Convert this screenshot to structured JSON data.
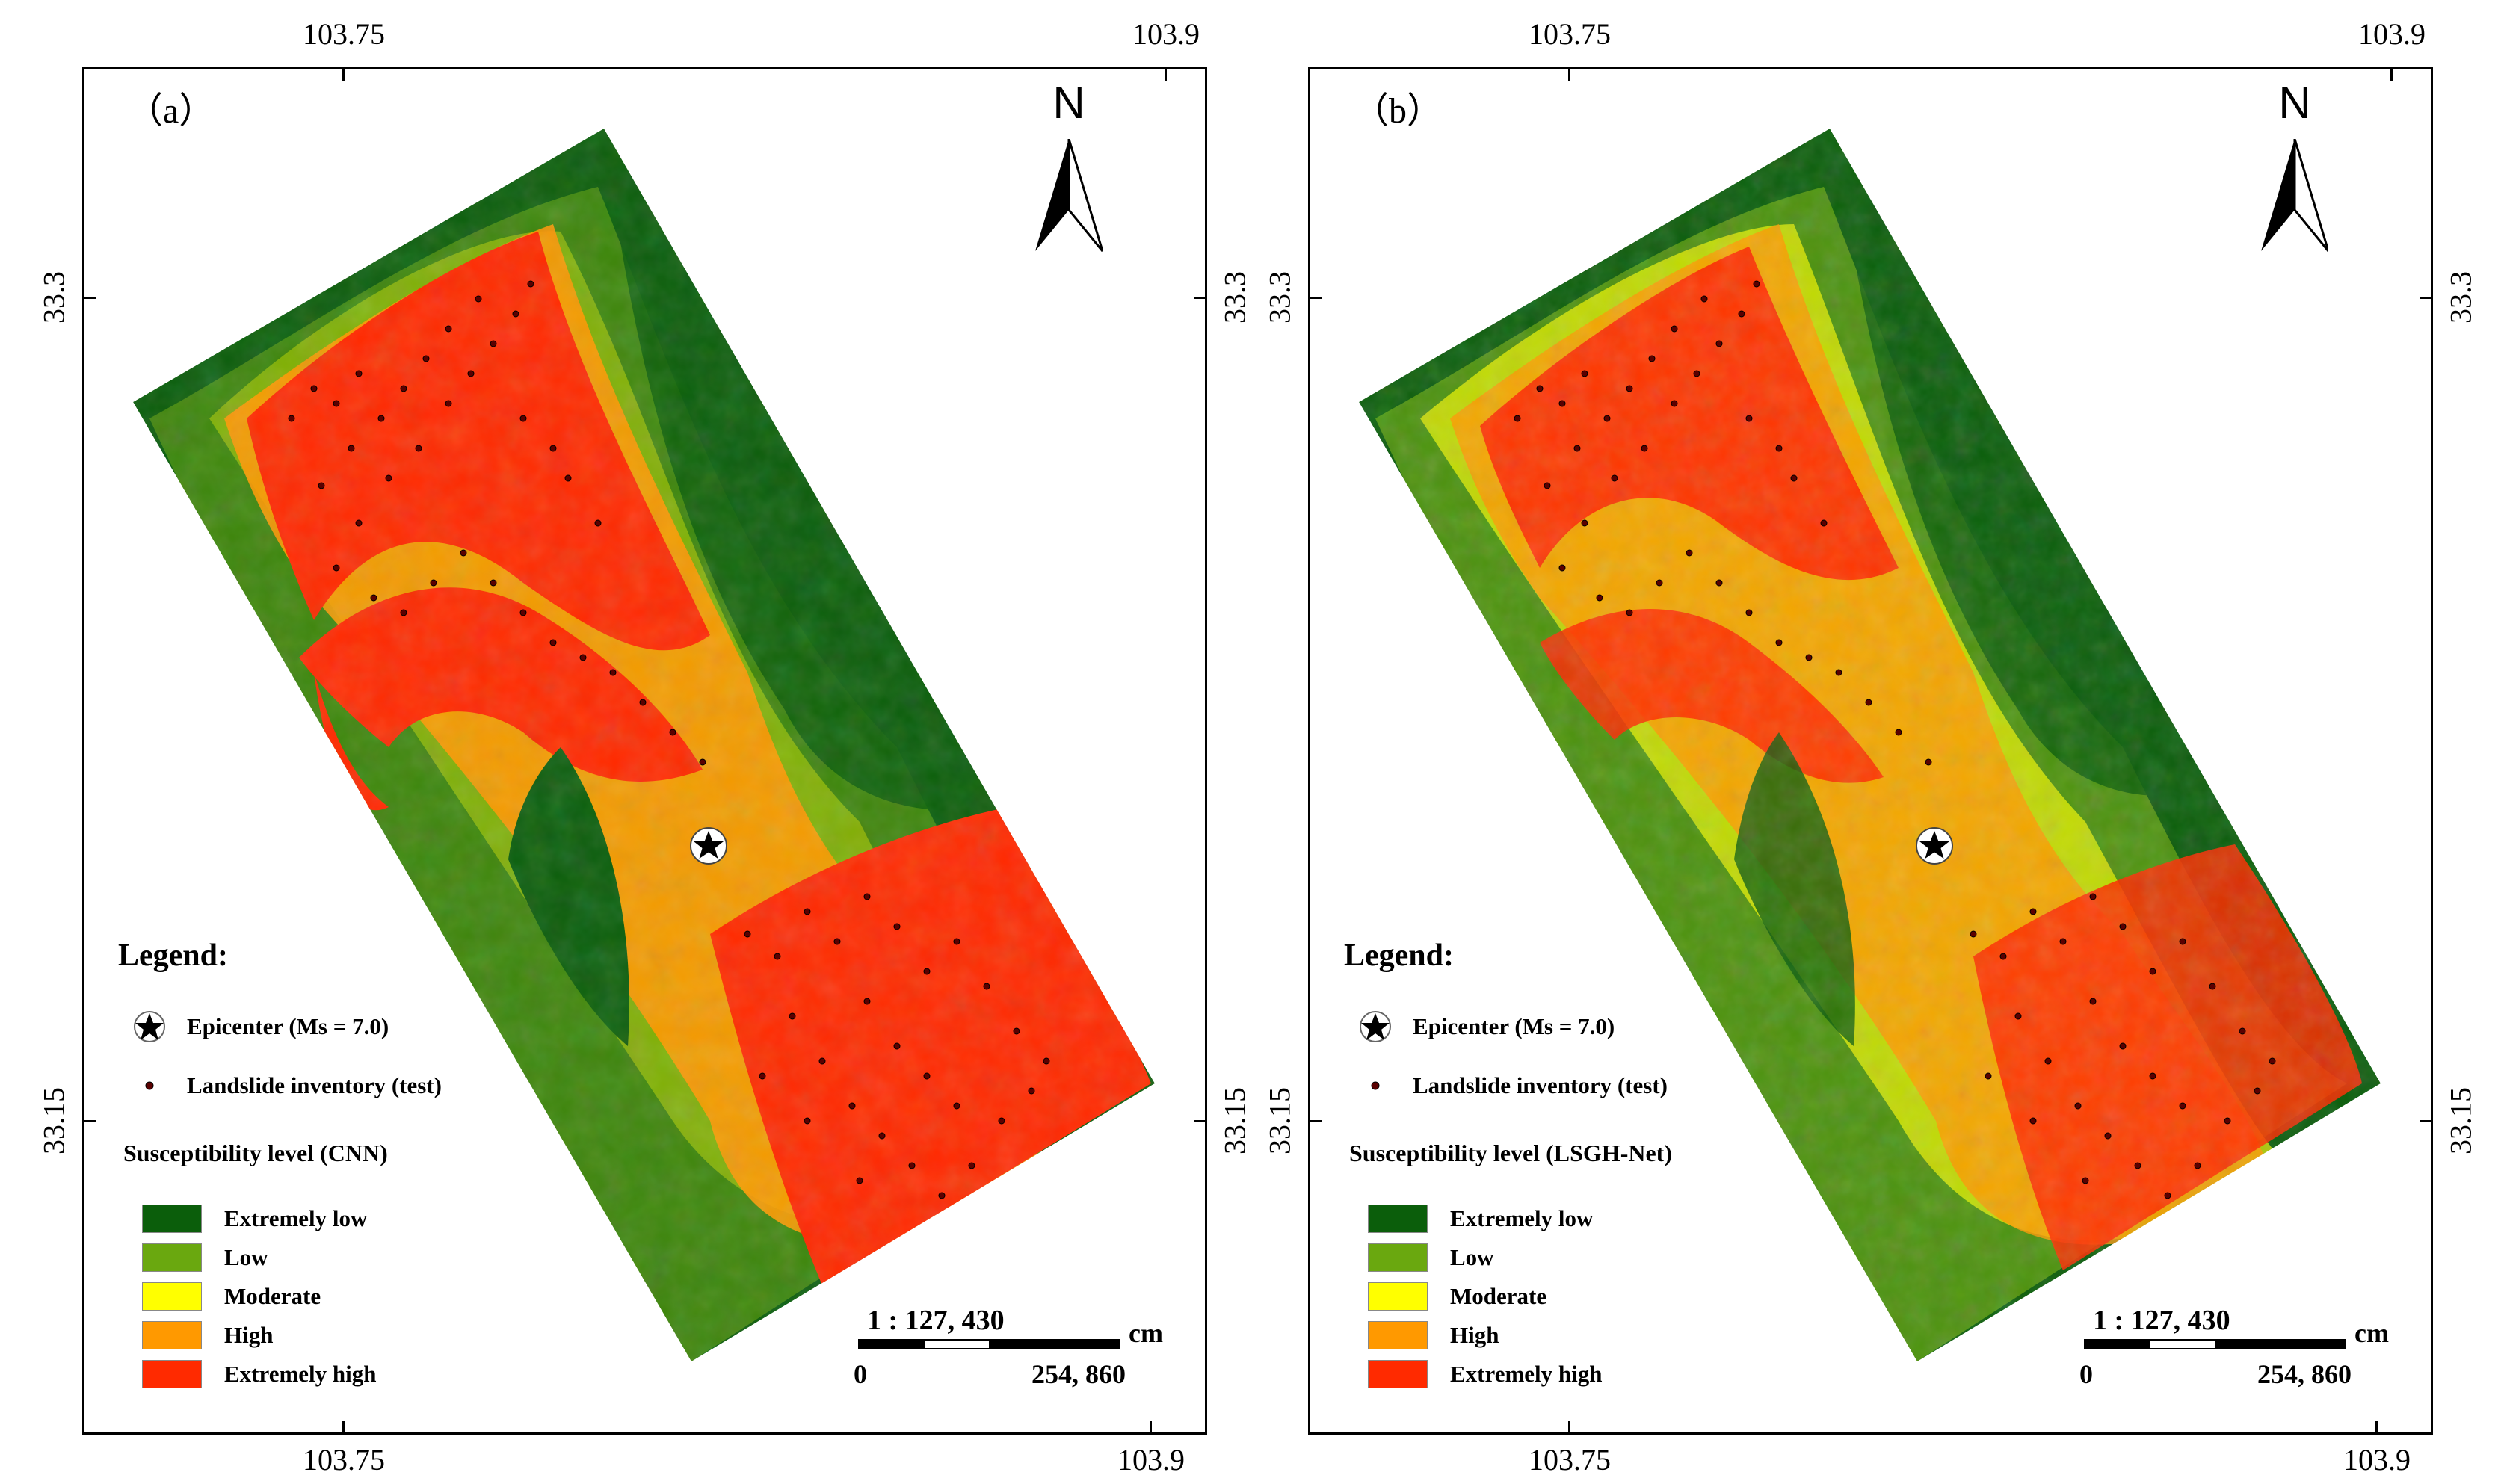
{
  "panels": [
    {
      "label": "（a）",
      "model": "CNN",
      "susceptibility_title": "Susceptibility level (CNN)"
    },
    {
      "label": "（b）",
      "model": "LSGH-Net",
      "susceptibility_title": "Susceptibility level (LSGH-Net)"
    }
  ],
  "axes": {
    "top_ticks": [
      "103.75",
      "103.9"
    ],
    "bottom_ticks": [
      "103.75",
      "103.9"
    ],
    "left_ticks": [
      "33.3",
      "33.15"
    ],
    "right_ticks": [
      "33.3",
      "33.15"
    ]
  },
  "north_arrow": "N",
  "north_icon": "north-arrow-icon",
  "legend": {
    "title": "Legend:",
    "epicenter": "Epicenter (Ms = 7.0)",
    "landslides": "Landslide inventory (test)",
    "classes": [
      {
        "label": "Extremely low",
        "color": "#0b5e0b"
      },
      {
        "label": "Low",
        "color": "#6aa80f"
      },
      {
        "label": "Moderate",
        "color": "#ffff00"
      },
      {
        "label": "High",
        "color": "#ff9900"
      },
      {
        "label": "Extremely high",
        "color": "#ff2a00"
      }
    ]
  },
  "scale": {
    "ratio": "1 : 127, 430",
    "unit": "cm",
    "start": "0",
    "end": "254, 860"
  }
}
